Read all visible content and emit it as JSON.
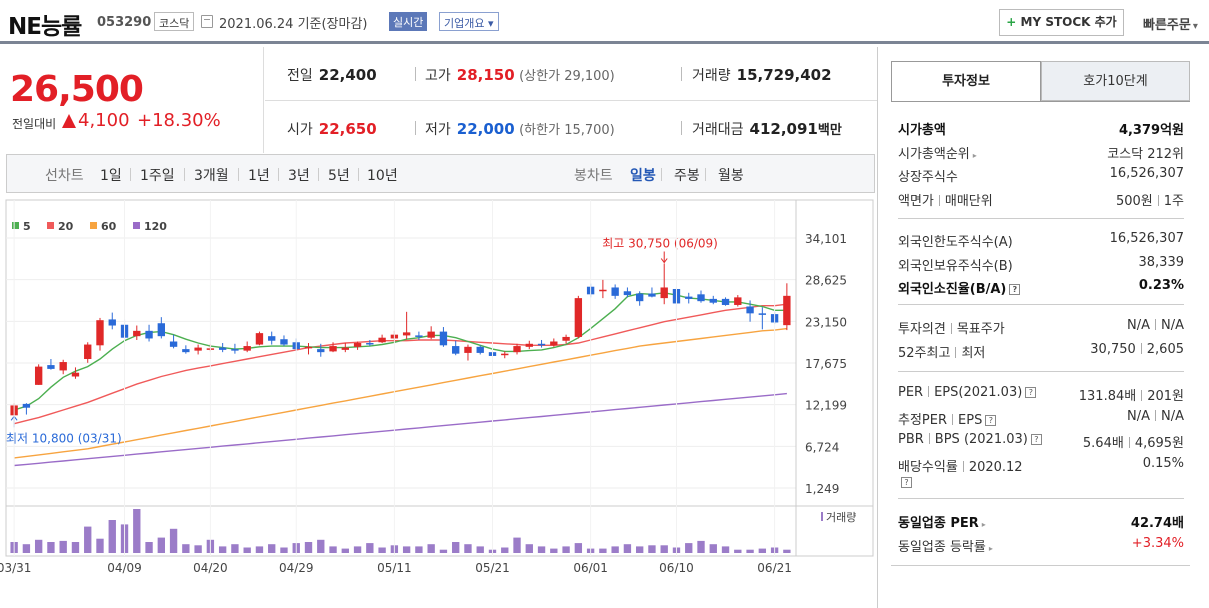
{
  "header": {
    "name": "NE능률",
    "code": "053290",
    "market": "코스닥",
    "date": "2021.06.24  기준(장마감)",
    "realtime": "실시간",
    "overview": "기업개요",
    "overview_arrow": "▾",
    "mystock": "MY STOCK 추가",
    "mystock_plus": "+",
    "quick_order": "빠른주문",
    "quick_arrow": "▾"
  },
  "price": {
    "current": "26,500",
    "change_label": "전일대비",
    "change": "4,100",
    "change_pct": "+18.30%"
  },
  "summary": {
    "prev_close": {
      "label": "전일",
      "value": "22,400"
    },
    "high": {
      "label": "고가",
      "value": "28,150",
      "sub": "(상한가 29,100)"
    },
    "volume": {
      "label": "거래량",
      "value": "15,729,402"
    },
    "open": {
      "label": "시가",
      "value": "22,650"
    },
    "low": {
      "label": "저가",
      "value": "22,000",
      "sub": "(하한가 15,700)"
    },
    "amount": {
      "label": "거래대금",
      "value": "412,091",
      "unit": "백만"
    }
  },
  "tabs": {
    "line": "선차트",
    "periods": [
      "1일",
      "1주일",
      "3개월",
      "1년",
      "3년",
      "5년",
      "10년"
    ],
    "candle": "봉차트",
    "candle_types": [
      "일봉",
      "주봉",
      "월봉"
    ],
    "active": "일봉"
  },
  "chart_data": {
    "type": "candlestick",
    "legend": [
      {
        "name": "5",
        "color": "#4caf50"
      },
      {
        "name": "20",
        "color": "#f05a5a"
      },
      {
        "name": "60",
        "color": "#f7a440"
      },
      {
        "name": "120",
        "color": "#9a6cc8"
      }
    ],
    "y_ticks": [
      "34,101",
      "28,625",
      "23,150",
      "17,675",
      "12,199",
      "6,724",
      "1,249"
    ],
    "ylim": [
      1249,
      34101
    ],
    "x_ticks": [
      "03/31",
      "04/09",
      "04/20",
      "04/29",
      "05/11",
      "05/21",
      "06/01",
      "06/10",
      "06/21"
    ],
    "x_tick_index": [
      0,
      9,
      16,
      23,
      31,
      39,
      47,
      54,
      62
    ],
    "annot_high": "최고 30,750 (06/09)",
    "annot_low": "최저 10,800 (03/31)",
    "volume_label": "거래량",
    "candles": [
      [
        10800,
        12400,
        10800,
        12100
      ],
      [
        12300,
        12400,
        10900,
        11800
      ],
      [
        14800,
        17500,
        14800,
        17200
      ],
      [
        17400,
        18200,
        16800,
        16900
      ],
      [
        16700,
        18100,
        16200,
        17800
      ],
      [
        15900,
        17100,
        15600,
        16400
      ],
      [
        18200,
        20400,
        17700,
        20100
      ],
      [
        20000,
        23600,
        19300,
        23300
      ],
      [
        23400,
        24300,
        22100,
        22600
      ],
      [
        22700,
        23400,
        20900,
        21000
      ],
      [
        21200,
        22600,
        20700,
        21900
      ],
      [
        21900,
        22700,
        20500,
        20900
      ],
      [
        22900,
        23700,
        20900,
        21200
      ],
      [
        20500,
        21400,
        19600,
        19800
      ],
      [
        19500,
        20000,
        18900,
        19100
      ],
      [
        19300,
        20100,
        18800,
        19700
      ],
      [
        19600,
        20200,
        19200,
        19600
      ],
      [
        19700,
        20300,
        19100,
        19400
      ],
      [
        19500,
        20200,
        18900,
        19300
      ],
      [
        19300,
        20500,
        19100,
        19900
      ],
      [
        20100,
        21800,
        20000,
        21600
      ],
      [
        21200,
        21800,
        20100,
        20600
      ],
      [
        20800,
        21300,
        19900,
        20100
      ],
      [
        20400,
        20900,
        19300,
        19500
      ],
      [
        19600,
        20300,
        18800,
        19800
      ],
      [
        19500,
        20200,
        18500,
        19100
      ],
      [
        19200,
        20400,
        19100,
        19900
      ],
      [
        19400,
        20300,
        19100,
        19700
      ],
      [
        19800,
        20500,
        19400,
        20300
      ],
      [
        20300,
        20700,
        19900,
        20200
      ],
      [
        20400,
        21400,
        20300,
        21000
      ],
      [
        20900,
        21900,
        20600,
        21400
      ],
      [
        21300,
        24400,
        20800,
        21700
      ],
      [
        21300,
        21800,
        20700,
        21100
      ],
      [
        21000,
        22500,
        20800,
        21800
      ],
      [
        21800,
        22400,
        19800,
        20000
      ],
      [
        19900,
        20600,
        18700,
        18900
      ],
      [
        19000,
        20100,
        18000,
        19800
      ],
      [
        19800,
        20000,
        18800,
        19000
      ],
      [
        19100,
        19400,
        18400,
        18600
      ],
      [
        18700,
        19200,
        18300,
        18900
      ],
      [
        19100,
        20200,
        18800,
        19900
      ],
      [
        19800,
        20600,
        19500,
        20200
      ],
      [
        20200,
        20700,
        19700,
        20000
      ],
      [
        20000,
        20900,
        19800,
        20500
      ],
      [
        20600,
        21400,
        20200,
        21100
      ],
      [
        21100,
        26500,
        20900,
        26200
      ],
      [
        27700,
        28100,
        26300,
        26700
      ],
      [
        27200,
        28600,
        26200,
        27300
      ],
      [
        27600,
        28000,
        26100,
        26500
      ],
      [
        27100,
        27600,
        26300,
        26600
      ],
      [
        26800,
        27100,
        25200,
        25800
      ],
      [
        26800,
        27600,
        26300,
        26400
      ],
      [
        26200,
        30750,
        25400,
        27600
      ],
      [
        27400,
        27700,
        23000,
        25500
      ],
      [
        26400,
        26900,
        25500,
        26100
      ],
      [
        26700,
        27200,
        25600,
        25800
      ],
      [
        26100,
        26500,
        25400,
        25600
      ],
      [
        26100,
        26300,
        25200,
        25300
      ],
      [
        25300,
        26600,
        25100,
        26300
      ],
      [
        25100,
        25900,
        23100,
        24200
      ],
      [
        24200,
        25000,
        22100,
        24000
      ],
      [
        24100,
        24400,
        22800,
        23000
      ],
      [
        22650,
        28150,
        22000,
        26500
      ]
    ],
    "ma5": [
      11500,
      12000,
      13000,
      14500,
      15800,
      16600,
      17200,
      18200,
      19500,
      20600,
      21300,
      21700,
      21800,
      21400,
      20800,
      20300,
      19900,
      19700,
      19500,
      19600,
      19800,
      19900,
      19900,
      19900,
      19800,
      19700,
      19700,
      19700,
      19800,
      19900,
      20100,
      20400,
      20800,
      21000,
      21300,
      21300,
      21000,
      20500,
      20000,
      19500,
      19200,
      19200,
      19300,
      19400,
      19700,
      20100,
      21000,
      22200,
      23500,
      24800,
      26400,
      26800,
      26700,
      26900,
      26600,
      26200,
      26100,
      25900,
      25700,
      25700,
      25400,
      25100,
      24600,
      24600
    ],
    "ma20": [
      9700,
      10100,
      10500,
      11000,
      11500,
      12000,
      12500,
      13100,
      13700,
      14300,
      14900,
      15400,
      15900,
      16300,
      16700,
      17000,
      17300,
      17600,
      17900,
      18200,
      18500,
      18800,
      19100,
      19400,
      19700,
      19900,
      20100,
      20300,
      20400,
      20500,
      20600,
      20600,
      20600,
      20700,
      20700,
      20700,
      20600,
      20500,
      20400,
      20300,
      20200,
      20100,
      20000,
      20000,
      20000,
      20100,
      20300,
      20700,
      21100,
      21500,
      21900,
      22300,
      22700,
      23100,
      23400,
      23700,
      24000,
      24300,
      24600,
      24800,
      25000,
      25200,
      25200,
      25400
    ],
    "ma60": [
      5200,
      5400,
      5600,
      5800,
      6000,
      6200,
      6400,
      6700,
      7000,
      7300,
      7600,
      7900,
      8200,
      8500,
      8800,
      9100,
      9400,
      9700,
      10000,
      10300,
      10600,
      10900,
      11200,
      11500,
      11800,
      12100,
      12400,
      12700,
      13000,
      13300,
      13600,
      13900,
      14200,
      14500,
      14800,
      15100,
      15400,
      15700,
      16000,
      16300,
      16600,
      16900,
      17200,
      17500,
      17800,
      18100,
      18400,
      18700,
      19000,
      19300,
      19600,
      19900,
      20100,
      20300,
      20500,
      20700,
      20900,
      21100,
      21300,
      21500,
      21700,
      21900,
      22000,
      22200
    ],
    "ma120": [
      4200,
      4350,
      4500,
      4650,
      4800,
      4950,
      5100,
      5250,
      5400,
      5550,
      5700,
      5850,
      6000,
      6150,
      6300,
      6450,
      6600,
      6750,
      6900,
      7050,
      7200,
      7350,
      7500,
      7650,
      7800,
      7950,
      8100,
      8250,
      8400,
      8550,
      8700,
      8850,
      9000,
      9150,
      9300,
      9450,
      9600,
      9750,
      9900,
      10050,
      10200,
      10350,
      10500,
      10650,
      10800,
      10950,
      11100,
      11250,
      11400,
      11550,
      11700,
      11850,
      12000,
      12150,
      12300,
      12450,
      12600,
      12750,
      12900,
      13050,
      13200,
      13350,
      13500,
      13650
    ],
    "volume": [
      10,
      8,
      12,
      10,
      11,
      10,
      24,
      13,
      30,
      26,
      40,
      10,
      14,
      22,
      8,
      7,
      12,
      6,
      8,
      5,
      6,
      8,
      5,
      9,
      10,
      12,
      6,
      4,
      6,
      9,
      5,
      7,
      6,
      6,
      8,
      3,
      10,
      8,
      6,
      3,
      5,
      14,
      8,
      6,
      4,
      6,
      9,
      4,
      4,
      6,
      8,
      6,
      7,
      7,
      5,
      9,
      11,
      8,
      6,
      3,
      3,
      4,
      5,
      3
    ]
  },
  "info": {
    "tab_active": "투자정보",
    "tab_other": "호가10단계",
    "g1": [
      {
        "k": "시가총액",
        "v": "4,379억원",
        "bold": true
      },
      {
        "k": "시가총액순위",
        "v": "코스닥 212위",
        "arrow": true
      },
      {
        "k": "상장주식수",
        "v": "16,526,307"
      },
      {
        "k": "액면가",
        "k2": "매매단위",
        "v": "500원",
        "v2": "1주"
      }
    ],
    "g2": [
      {
        "k": "외국인한도주식수(A)",
        "v": "16,526,307"
      },
      {
        "k": "외국인보유주식수(B)",
        "v": "38,339"
      },
      {
        "k": "외국인소진율(B/A)",
        "v": "0.23%",
        "bold": true,
        "q": true
      }
    ],
    "g3": [
      {
        "k": "투자의견",
        "k2": "목표주가",
        "v": "N/A",
        "v2": "N/A"
      },
      {
        "k": "52주최고",
        "k2": "최저",
        "v": "30,750",
        "v2": "2,605"
      }
    ],
    "g4": [
      {
        "k": "PER",
        "k2": "EPS(2021.03)",
        "q": true,
        "v": "131.84배",
        "v2": "201원"
      },
      {
        "k": "추정PER",
        "k2": "EPS",
        "q": true,
        "v": "N/A",
        "v2": "N/A"
      },
      {
        "k": "PBR",
        "k2": "BPS (2021.03)",
        "q": true,
        "v": "5.64배",
        "v2": "4,695원"
      },
      {
        "k": "배당수익률",
        "k2": "2020.12",
        "q2": true,
        "v": "0.15%"
      }
    ],
    "g5": [
      {
        "k": "동일업종 PER",
        "v": "42.74배",
        "arrow": true,
        "bold": true
      },
      {
        "k": "동일업종 등락률",
        "v": "+3.34%",
        "arrow": true,
        "red": true
      }
    ],
    "q_mark": "?",
    "arrow_mark": "▸"
  }
}
